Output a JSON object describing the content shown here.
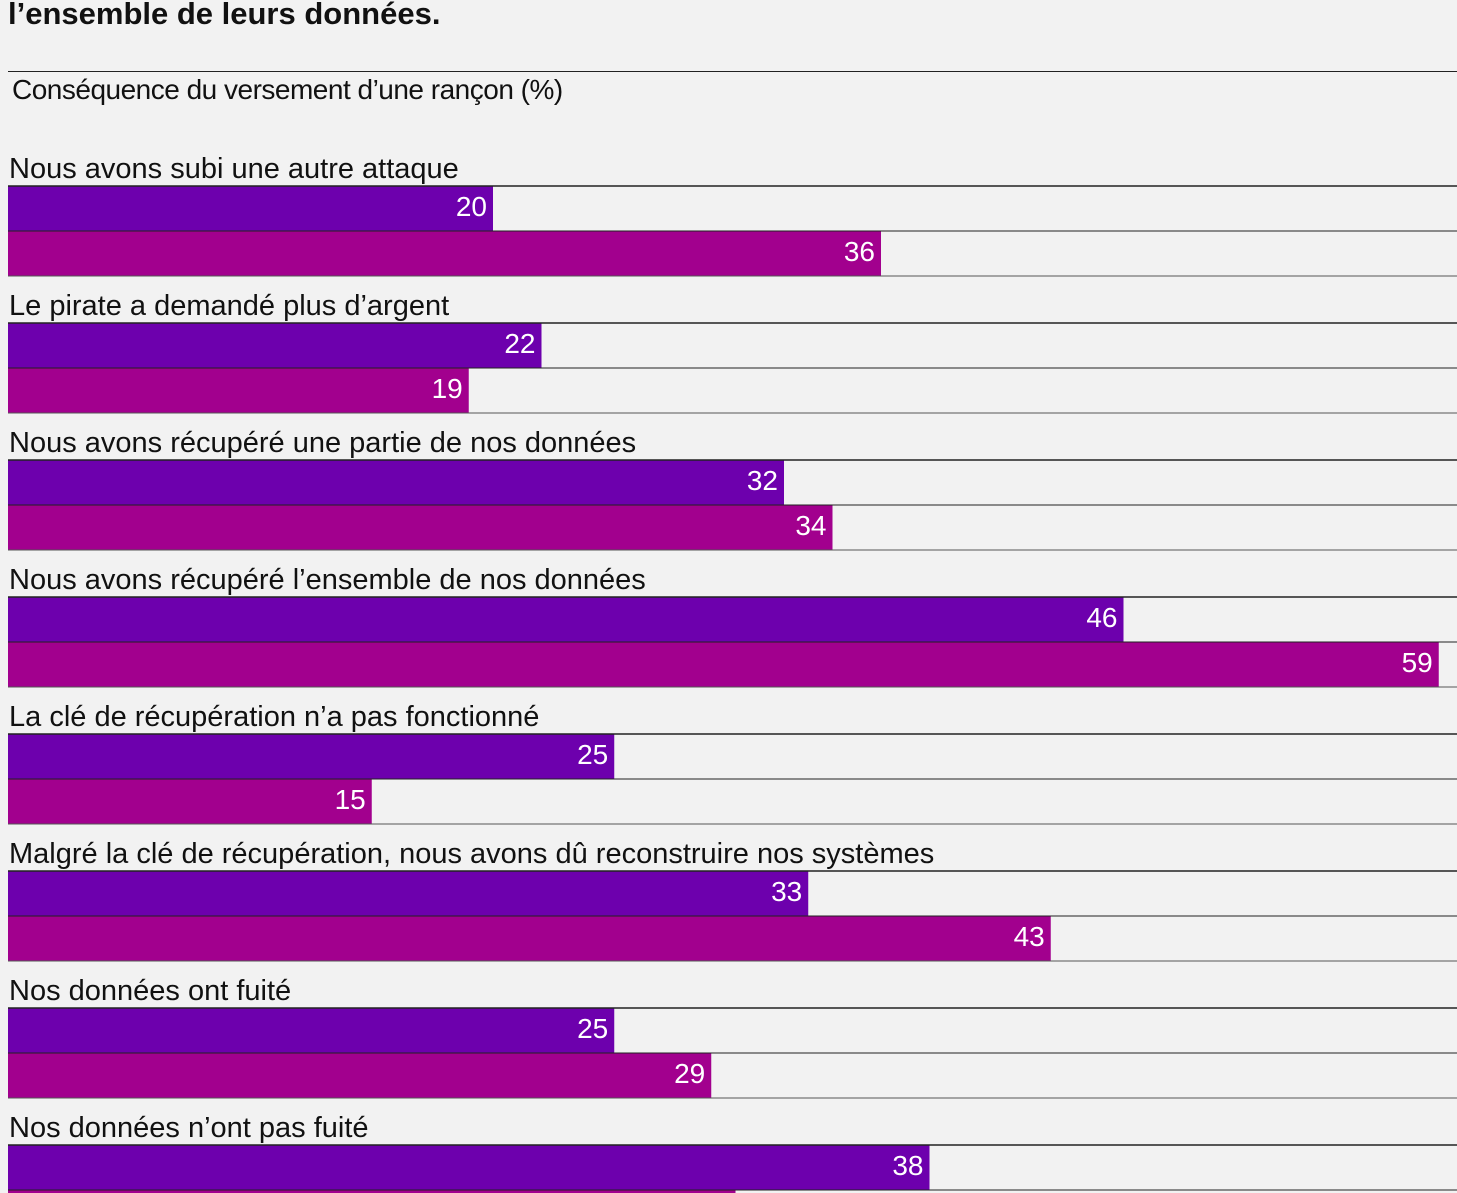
{
  "headline": "l’ensemble de leurs données.",
  "colors": {
    "series1": "#6d00ad",
    "series2": "#a2008e",
    "rule": "#222222",
    "background": "#f2f2f2"
  },
  "chart_data": {
    "type": "bar",
    "orientation": "horizontal",
    "title": "Conséquence du versement d’une rançon (%)",
    "categories": [
      "Nous avons subi une autre attaque",
      "Le pirate a demandé plus d’argent",
      "Nous avons récupéré une partie de nos données",
      "Nous avons récupéré l’ensemble de nos données",
      "La clé de récupération n’a pas fonctionné",
      "Malgré la clé de récupération, nous avons dû reconstruire nos systèmes",
      "Nos données ont fuité",
      "Nos données n’ont pas fuité"
    ],
    "series": [
      {
        "values": [
          20,
          22,
          32,
          46,
          25,
          33,
          25,
          38
        ]
      },
      {
        "values": [
          36,
          19,
          34,
          59,
          15,
          43,
          29,
          30
        ]
      }
    ],
    "xlim": [
      0,
      60
    ],
    "grid": false,
    "legend": "none"
  }
}
